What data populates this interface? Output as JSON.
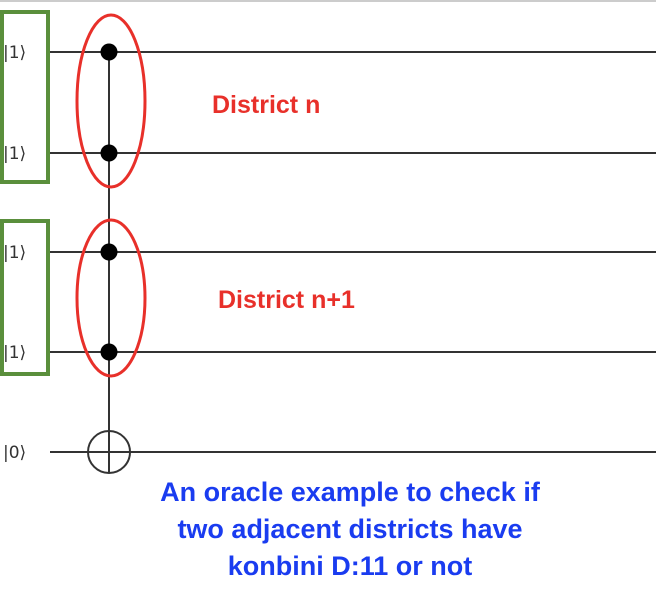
{
  "colors": {
    "wire": "#333333",
    "group_box": "#5a8f3c",
    "highlight": "#e8302a",
    "district_text": "#e8302a",
    "caption_text": "#1a3cf0"
  },
  "qubits": [
    {
      "ket": "|1⟩",
      "role": "control"
    },
    {
      "ket": "|1⟩",
      "role": "control"
    },
    {
      "ket": "|1⟩",
      "role": "control"
    },
    {
      "ket": "|1⟩",
      "role": "control"
    },
    {
      "ket": "|0⟩",
      "role": "target"
    }
  ],
  "districts": [
    {
      "label": "District n"
    },
    {
      "label": "District n+1"
    }
  ],
  "caption": {
    "lines": [
      "An oracle example to check if",
      "two adjacent districts have",
      "konbini D:11 or not"
    ]
  }
}
